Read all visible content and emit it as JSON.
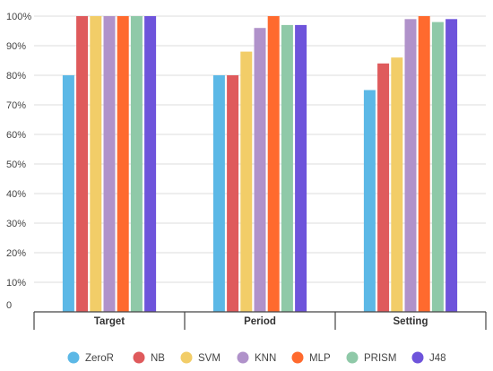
{
  "chart_data": {
    "type": "bar",
    "title": "",
    "xlabel": "",
    "ylabel": "",
    "ylim": [
      0,
      100
    ],
    "yticks": [
      0,
      10,
      20,
      30,
      40,
      50,
      60,
      70,
      80,
      90,
      100
    ],
    "ytick_labels": [
      "0",
      "10%",
      "20%",
      "30%",
      "40%",
      "50%",
      "60%",
      "70%",
      "80%",
      "90%",
      "100%"
    ],
    "categories": [
      "Target",
      "Period",
      "Setting"
    ],
    "grid": true,
    "legend_position": "bottom",
    "series": [
      {
        "name": "ZeroR",
        "color": "#5cb8e6",
        "values": [
          80,
          80,
          75
        ]
      },
      {
        "name": "NB",
        "color": "#df5a5c",
        "values": [
          100,
          80,
          84
        ]
      },
      {
        "name": "SVM",
        "color": "#f2cd68",
        "values": [
          100,
          88,
          86
        ]
      },
      {
        "name": "KNN",
        "color": "#b092ca",
        "values": [
          100,
          96,
          99
        ]
      },
      {
        "name": "MLP",
        "color": "#ff6a2e",
        "values": [
          100,
          100,
          100
        ]
      },
      {
        "name": "PRISM",
        "color": "#8fc9a8",
        "values": [
          100,
          97,
          98
        ]
      },
      {
        "name": "J48",
        "color": "#6e54db",
        "values": [
          100,
          97,
          99
        ]
      }
    ]
  }
}
